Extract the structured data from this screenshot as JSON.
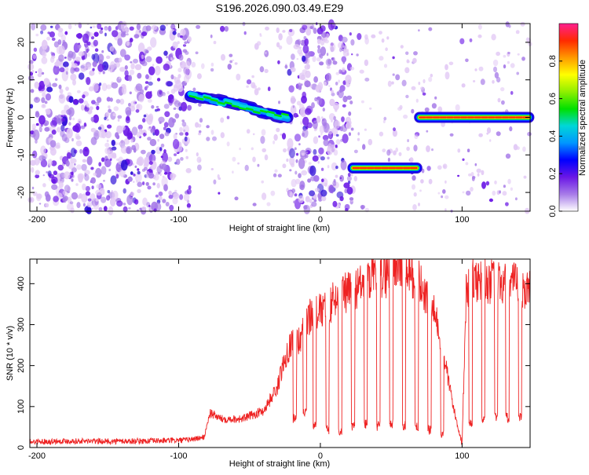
{
  "title": "S196.2026.090.03.49.E29",
  "colors": {
    "snr_line": "#ee2222",
    "background": "#ffffff",
    "colormap": [
      "#ffffff",
      "#e2c9f5",
      "#a77be8",
      "#6a16e6",
      "#2e10d8",
      "#0000ff",
      "#0096ff",
      "#00d7d7",
      "#00e000",
      "#8fef00",
      "#ffff00",
      "#ff9a00",
      "#ff2a00",
      "#ff1f8f"
    ]
  },
  "chart_data": [
    {
      "type": "heatmap",
      "name": "spectrogram",
      "xlabel": "Height of straight line (km)",
      "ylabel": "Frequency (Hz)",
      "xlim": [
        -205,
        148
      ],
      "ylim": [
        -25,
        25
      ],
      "xticks": [
        -200,
        -100,
        0,
        100
      ],
      "yticks": [
        -20,
        -10,
        0,
        10,
        20
      ],
      "regions": [
        {
          "label": "noise",
          "x": [
            -205,
            -92
          ],
          "texture": "dense"
        },
        {
          "label": "noise",
          "x": [
            -90,
            -22
          ],
          "texture": "sparse"
        },
        {
          "label": "noise",
          "x": [
            -22,
            23
          ],
          "texture": "dense"
        },
        {
          "label": "noise",
          "x": [
            23,
            70
          ],
          "texture": "sparse"
        },
        {
          "label": "noise",
          "x": [
            70,
            148
          ],
          "texture": "sparse"
        }
      ],
      "tone_segments": [
        {
          "x_start": -92,
          "x_end": -22,
          "freq_start": 6,
          "freq_end": 0,
          "amplitude": 0.55
        },
        {
          "x_start": 23,
          "x_end": 69,
          "freq_start": -13.5,
          "freq_end": -13.5,
          "amplitude": 0.75
        },
        {
          "x_start": 70,
          "x_end": 148,
          "freq_start": 0,
          "freq_end": 0,
          "amplitude": 0.95
        }
      ],
      "colorbar": {
        "label": "Normalized spectral amplitude",
        "range": [
          0,
          1
        ],
        "ticks": [
          "0.0",
          "0.2",
          "0.4",
          "0.6",
          "0.8"
        ]
      }
    },
    {
      "type": "line",
      "name": "snr",
      "xlabel": "Height of straight line (km)",
      "ylabel": "SNR (10 * v/v)",
      "xlim": [
        -205,
        148
      ],
      "ylim": [
        0,
        460
      ],
      "xticks": [
        -200,
        -100,
        0,
        100
      ],
      "yticks": [
        0,
        100,
        200,
        300,
        400
      ],
      "series": [
        {
          "name": "SNR",
          "x": [
            -205,
            -180,
            -150,
            -120,
            -95,
            -82,
            -78,
            -70,
            -55,
            -40,
            -30,
            -25,
            -20,
            -15,
            -10,
            -5,
            0,
            10,
            20,
            30,
            40,
            50,
            55,
            60,
            65,
            70,
            75,
            80,
            85,
            90,
            95,
            100,
            103,
            110,
            120,
            130,
            140,
            148
          ],
          "values": [
            14,
            16,
            15,
            16,
            18,
            25,
            85,
            70,
            70,
            90,
            150,
            220,
            260,
            260,
            310,
            330,
            330,
            360,
            380,
            400,
            410,
            430,
            445,
            440,
            420,
            400,
            370,
            330,
            270,
            170,
            80,
            10,
            390,
            410,
            405,
            400,
            395,
            380
          ]
        }
      ],
      "dropouts": [
        {
          "x": -18,
          "min": 60
        },
        {
          "x": -11,
          "min": 70
        },
        {
          "x": -4,
          "min": 40
        },
        {
          "x": 5,
          "min": 30
        },
        {
          "x": 14,
          "min": 25
        },
        {
          "x": 23,
          "min": 40
        },
        {
          "x": 32,
          "min": 45
        },
        {
          "x": 41,
          "min": 40
        },
        {
          "x": 50,
          "min": 45
        },
        {
          "x": 59,
          "min": 40
        },
        {
          "x": 68,
          "min": 40
        },
        {
          "x": 77,
          "min": 30
        },
        {
          "x": 86,
          "min": 20
        },
        {
          "x": 106,
          "min": 50
        },
        {
          "x": 115,
          "min": 60
        },
        {
          "x": 124,
          "min": 60
        },
        {
          "x": 132,
          "min": 60
        },
        {
          "x": 141,
          "min": 60
        }
      ]
    }
  ]
}
